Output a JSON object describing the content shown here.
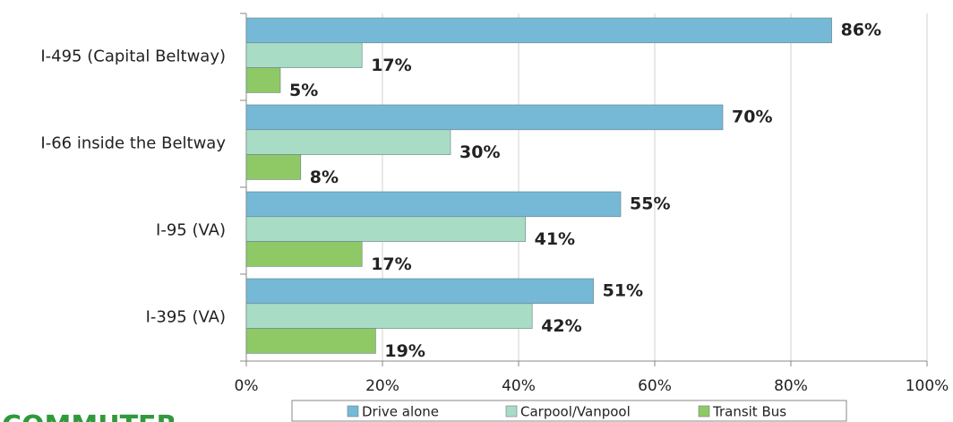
{
  "chart_data": {
    "type": "bar",
    "orientation": "horizontal",
    "categories": [
      "I-495 (Capital Beltway)",
      "I-66 inside the Beltway",
      "I-95 (VA)",
      "I-395 (VA)"
    ],
    "series": [
      {
        "name": "Drive alone",
        "color": "#75b9d6",
        "values": [
          86,
          70,
          55,
          51
        ],
        "value_labels": [
          "86%",
          "70%",
          "55%",
          "51%"
        ]
      },
      {
        "name": "Carpool/Vanpool",
        "color": "#a9dcc5",
        "values": [
          17,
          30,
          41,
          42
        ],
        "value_labels": [
          "17%",
          "30%",
          "41%",
          "42%"
        ]
      },
      {
        "name": "Transit Bus",
        "color": "#8ec965",
        "values": [
          5,
          8,
          17,
          19
        ],
        "value_labels": [
          "5%",
          "8%",
          "17%",
          "19%"
        ]
      }
    ],
    "xlim": [
      0,
      100
    ],
    "xticks": [
      {
        "value": 0,
        "label": "0%"
      },
      {
        "value": 20,
        "label": "20%"
      },
      {
        "value": 40,
        "label": "40%"
      },
      {
        "value": 60,
        "label": "60%"
      },
      {
        "value": 80,
        "label": "80%"
      },
      {
        "value": 100,
        "label": "100%"
      }
    ],
    "grid": true,
    "legend": "bottom"
  },
  "logo": "COMMUTER"
}
